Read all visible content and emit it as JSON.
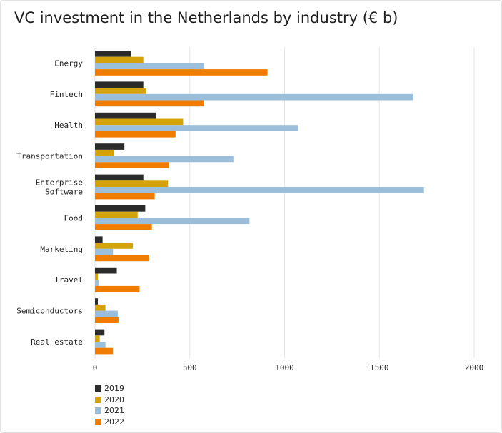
{
  "title": "VC investment in the Netherlands by industry (€ b)",
  "chart_data": {
    "type": "bar",
    "orientation": "horizontal",
    "title": "VC investment in the Netherlands by industry (€ b)",
    "categories": [
      "Energy",
      "Fintech",
      "Health",
      "Transportation",
      "Enterprise Software",
      "Food",
      "Marketing",
      "Travel",
      "Semiconductors",
      "Real estate"
    ],
    "category_lines": [
      [
        "Energy"
      ],
      [
        "Fintech"
      ],
      [
        "Health"
      ],
      [
        "Transportation"
      ],
      [
        "Enterprise",
        "Software"
      ],
      [
        "Food"
      ],
      [
        "Marketing"
      ],
      [
        "Travel"
      ],
      [
        "Semiconductors"
      ],
      [
        "Real estate"
      ]
    ],
    "series": [
      {
        "name": "2019",
        "color": "#2b2b2b",
        "values": [
          190,
          255,
          320,
          155,
          255,
          265,
          40,
          115,
          15,
          50
        ]
      },
      {
        "name": "2020",
        "color": "#d4a20a",
        "values": [
          255,
          270,
          465,
          100,
          385,
          225,
          200,
          15,
          55,
          25
        ]
      },
      {
        "name": "2021",
        "color": "#9bbedb",
        "values": [
          575,
          1680,
          1070,
          730,
          1735,
          815,
          95,
          20,
          120,
          55
        ]
      },
      {
        "name": "2022",
        "color": "#f07d00",
        "values": [
          910,
          575,
          425,
          390,
          315,
          300,
          285,
          235,
          125,
          95
        ]
      }
    ],
    "xlim": [
      0,
      2000
    ],
    "xticks": [
      0,
      500,
      1000,
      1500,
      2000
    ],
    "xtick_labels": [
      "0",
      "500",
      "1000",
      "1500",
      "2000"
    ],
    "grid": "vertical",
    "legend_position": "bottom-left"
  }
}
